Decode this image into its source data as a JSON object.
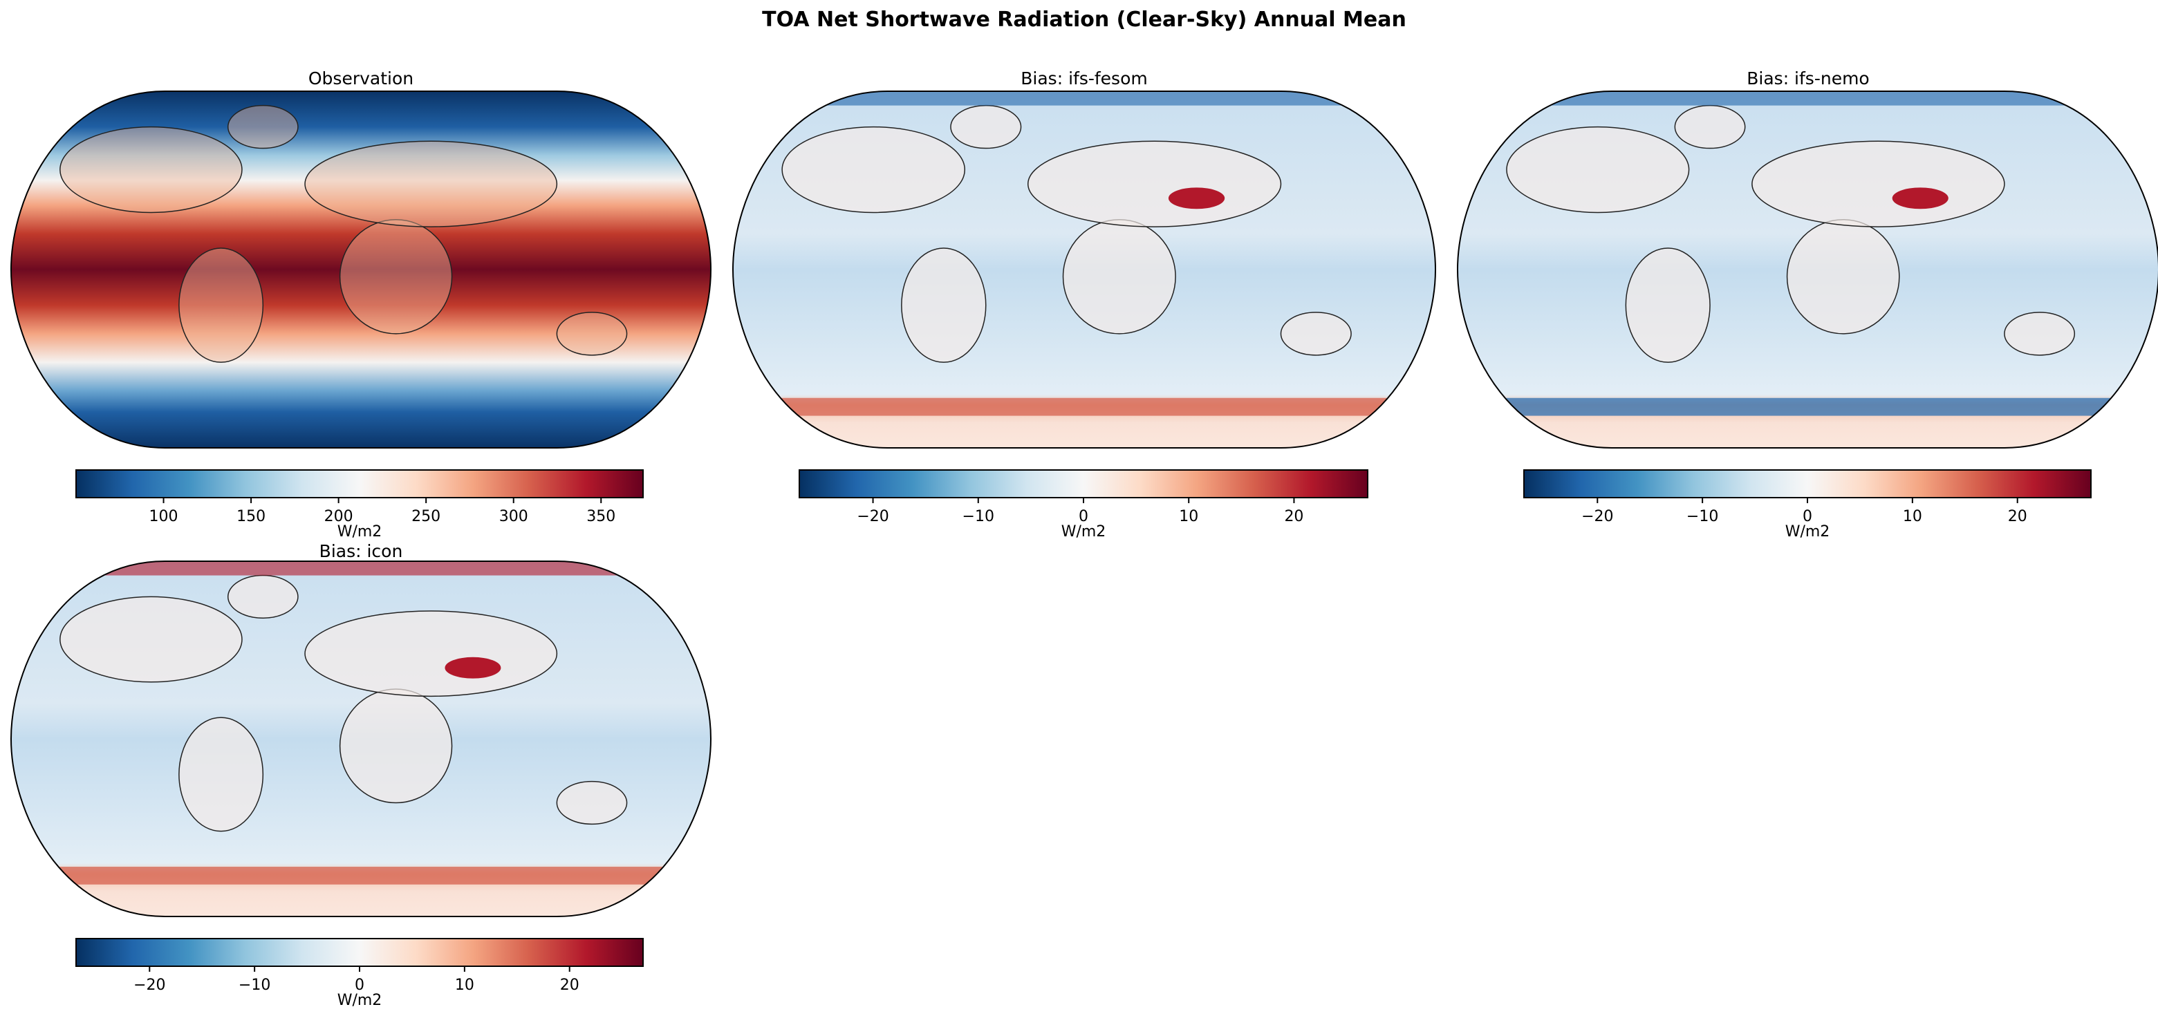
{
  "chart_data": {
    "type": "heatmap",
    "title": "TOA Net Shortwave Radiation (Clear-Sky) Annual Mean",
    "colormap": [
      "#053061",
      "#2166ac",
      "#4393c3",
      "#92c5de",
      "#d1e5f0",
      "#f7f7f7",
      "#fddbc7",
      "#f4a582",
      "#d6604d",
      "#b2182b",
      "#67001f"
    ],
    "panels": [
      {
        "title": "Observation",
        "projection": "Robinson",
        "colorbar": {
          "label": "W/m2",
          "range": [
            50,
            374
          ],
          "ticks": [
            100,
            150,
            200,
            250,
            300,
            350
          ],
          "tick_labels": [
            "100",
            "150",
            "200",
            "250",
            "300",
            "350"
          ]
        }
      },
      {
        "title": "Bias: ifs-fesom",
        "projection": "Robinson",
        "colorbar": {
          "label": "W/m2",
          "range": [
            -27,
            27
          ],
          "ticks": [
            -20,
            -10,
            0,
            10,
            20
          ],
          "tick_labels": [
            "−20",
            "−10",
            "0",
            "10",
            "20"
          ]
        }
      },
      {
        "title": "Bias: ifs-nemo",
        "projection": "Robinson",
        "colorbar": {
          "label": "W/m2",
          "range": [
            -27,
            27
          ],
          "ticks": [
            -20,
            -10,
            0,
            10,
            20
          ],
          "tick_labels": [
            "−20",
            "−10",
            "0",
            "10",
            "20"
          ]
        }
      },
      {
        "title": "Bias: icon",
        "projection": "Robinson",
        "colorbar": {
          "label": "W/m2",
          "range": [
            -27,
            27
          ],
          "ticks": [
            -20,
            -10,
            0,
            10,
            20
          ],
          "tick_labels": [
            "−20",
            "−10",
            "0",
            "10",
            "20"
          ]
        }
      }
    ]
  }
}
